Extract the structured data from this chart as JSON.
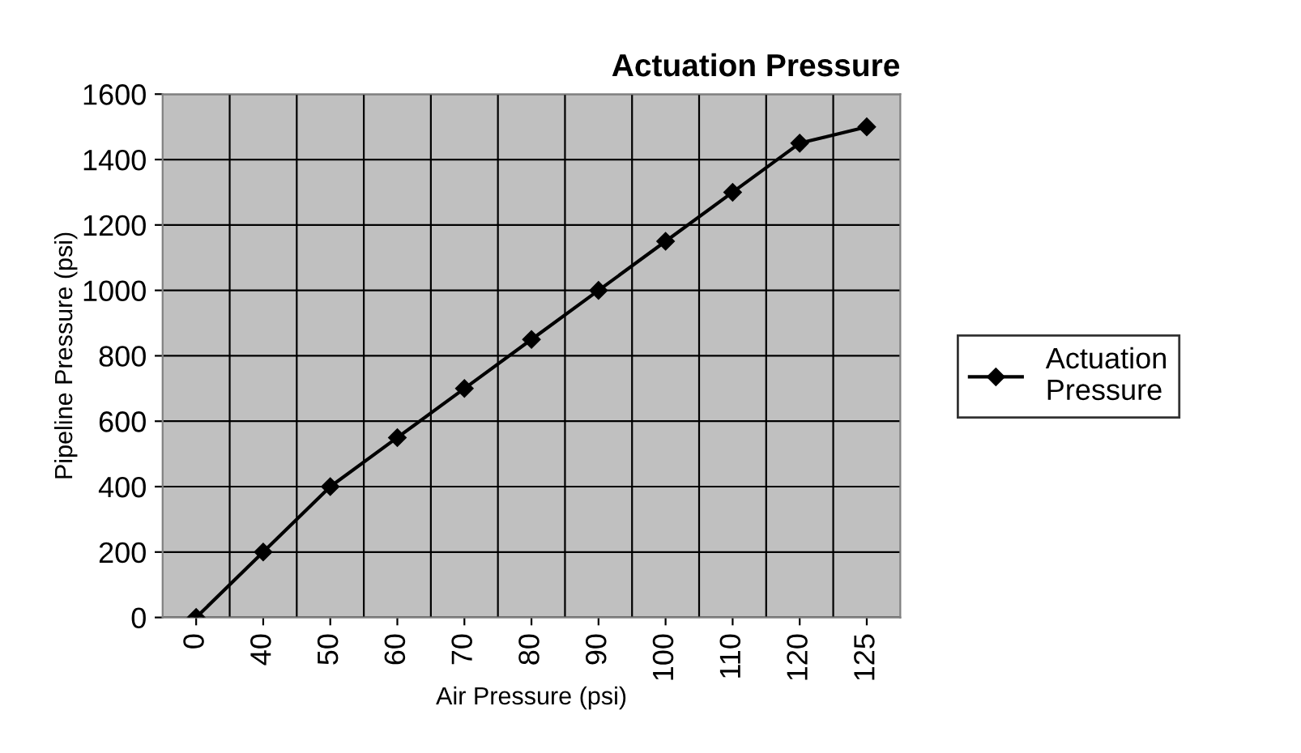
{
  "chart_data": {
    "type": "line",
    "title": "Actuation Pressure",
    "xlabel": "Air Pressure (psi)",
    "ylabel": "Pipeline Pressure (psi)",
    "categories": [
      "0",
      "40",
      "50",
      "60",
      "70",
      "80",
      "90",
      "100",
      "110",
      "120",
      "125"
    ],
    "series": [
      {
        "name": "Actuation Pressure",
        "color": "#000000",
        "values": [
          0,
          200,
          400,
          550,
          700,
          850,
          1000,
          1150,
          1300,
          1450,
          1500
        ]
      }
    ],
    "ylim": [
      0,
      1600
    ],
    "yticks": [
      0,
      200,
      400,
      600,
      800,
      1000,
      1200,
      1400,
      1600
    ],
    "grid": true,
    "legend": "right",
    "marker": "diamond",
    "line_style": "solid"
  }
}
